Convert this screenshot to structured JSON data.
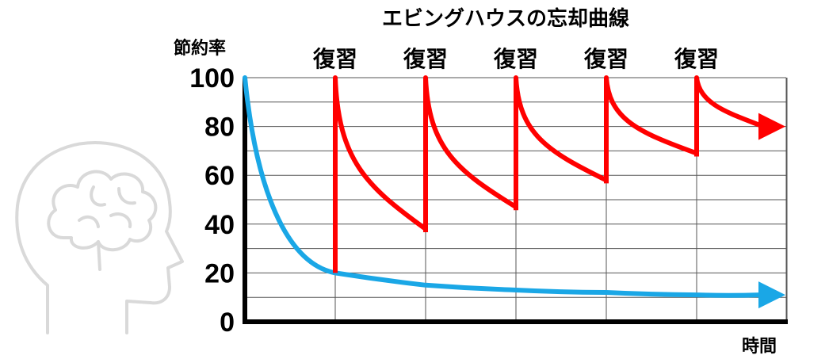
{
  "chart_data": {
    "type": "line",
    "title": "エビングハウスの忘却曲線",
    "ylabel": "節約率",
    "xlabel": "時間",
    "ylim": [
      0,
      100
    ],
    "y_ticks": [
      0,
      20,
      40,
      60,
      80,
      100
    ],
    "grid": true,
    "review_label": "復習",
    "review_count": 5,
    "series": [
      {
        "color": "#1aa7e6",
        "points": [
          [
            0,
            100
          ],
          [
            1,
            20
          ],
          [
            2,
            15
          ],
          [
            3,
            13
          ],
          [
            4,
            12
          ],
          [
            5,
            11
          ],
          [
            6,
            11
          ]
        ]
      },
      {
        "color": "#ff0000",
        "segments": [
          {
            "start": [
              1,
              20
            ],
            "peak": 100,
            "end": [
              2,
              38
            ]
          },
          {
            "start": [
              2,
              38
            ],
            "peak": 100,
            "end": [
              3,
              47
            ]
          },
          {
            "start": [
              3,
              47
            ],
            "peak": 100,
            "end": [
              4,
              58
            ]
          },
          {
            "start": [
              4,
              58
            ],
            "peak": 100,
            "end": [
              5,
              69
            ]
          },
          {
            "start": [
              5,
              69
            ],
            "peak": 100,
            "end": [
              6,
              80
            ]
          }
        ]
      }
    ]
  },
  "icons": {
    "decoration": "head-brain-icon",
    "decoration_color": "#d9d9d9"
  }
}
